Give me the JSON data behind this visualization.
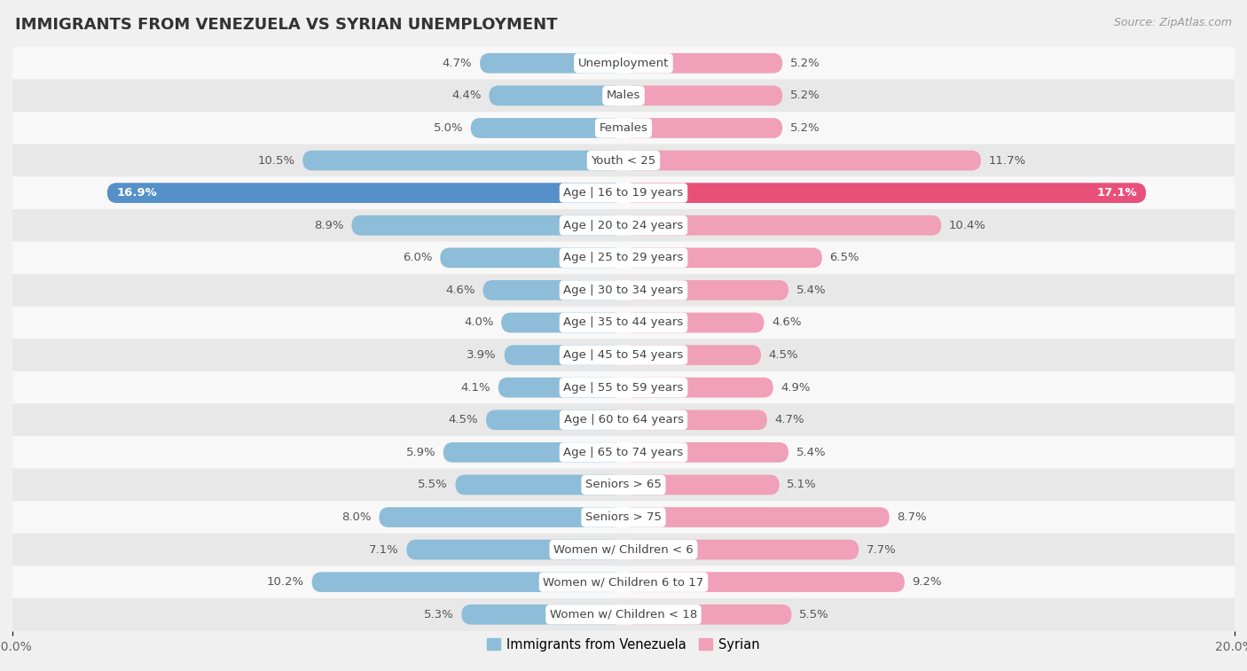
{
  "title": "IMMIGRANTS FROM VENEZUELA VS SYRIAN UNEMPLOYMENT",
  "source": "Source: ZipAtlas.com",
  "categories": [
    "Unemployment",
    "Males",
    "Females",
    "Youth < 25",
    "Age | 16 to 19 years",
    "Age | 20 to 24 years",
    "Age | 25 to 29 years",
    "Age | 30 to 34 years",
    "Age | 35 to 44 years",
    "Age | 45 to 54 years",
    "Age | 55 to 59 years",
    "Age | 60 to 64 years",
    "Age | 65 to 74 years",
    "Seniors > 65",
    "Seniors > 75",
    "Women w/ Children < 6",
    "Women w/ Children 6 to 17",
    "Women w/ Children < 18"
  ],
  "venezuela_values": [
    4.7,
    4.4,
    5.0,
    10.5,
    16.9,
    8.9,
    6.0,
    4.6,
    4.0,
    3.9,
    4.1,
    4.5,
    5.9,
    5.5,
    8.0,
    7.1,
    10.2,
    5.3
  ],
  "syrian_values": [
    5.2,
    5.2,
    5.2,
    11.7,
    17.1,
    10.4,
    6.5,
    5.4,
    4.6,
    4.5,
    4.9,
    4.7,
    5.4,
    5.1,
    8.7,
    7.7,
    9.2,
    5.5
  ],
  "venezuela_color": "#8dbdd8",
  "syrian_color": "#f0a0b8",
  "venezuela_highlight_color": "#5590c8",
  "syrian_highlight_color": "#e8507a",
  "highlight_index": 4,
  "max_value": 20.0,
  "bg_color": "#f0f0f0",
  "row_light_color": "#f8f8f8",
  "row_dark_color": "#e8e8e8",
  "legend_venezuela": "Immigrants from Venezuela",
  "legend_syrian": "Syrian",
  "bar_height": 0.62,
  "title_fontsize": 13,
  "source_fontsize": 9,
  "label_fontsize": 9.5,
  "category_fontsize": 9.5
}
